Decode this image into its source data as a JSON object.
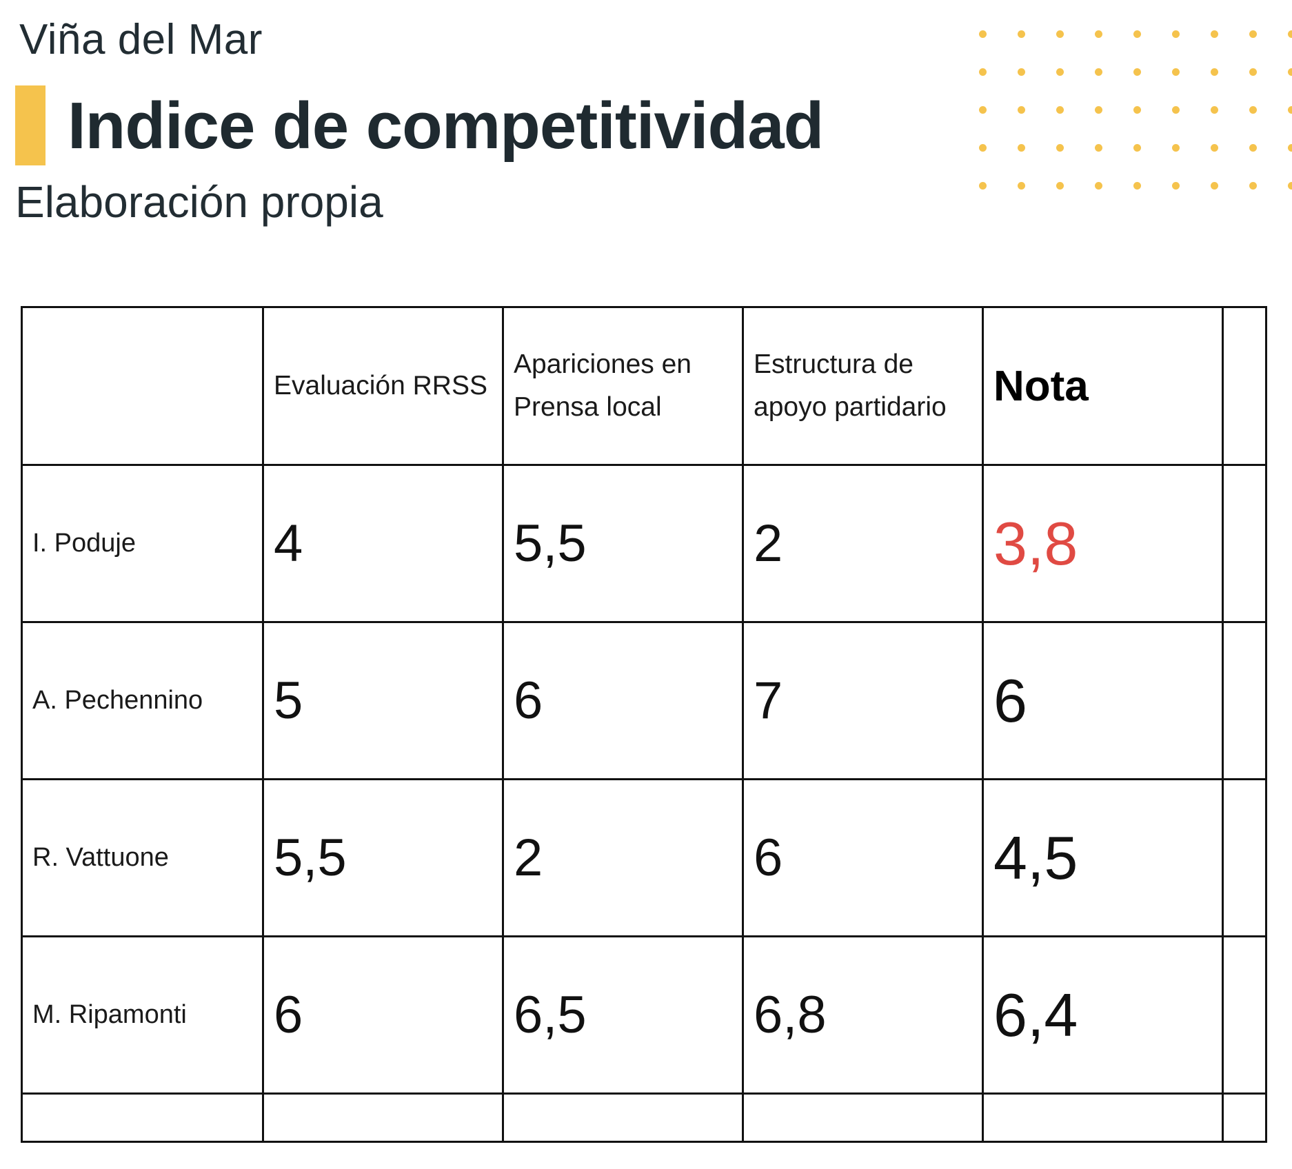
{
  "header": {
    "region": "Viña del Mar",
    "title": "Indice de competitividad",
    "subtitle": "Elaboración propia"
  },
  "colors": {
    "accent": "#f5c34d",
    "text_dark": "#1f2a30",
    "highlight_red": "#e04a43"
  },
  "table": {
    "columns": [
      "",
      "Evaluación RRSS",
      "Apariciones en Prensa local",
      "Estructura de apoyo partidario",
      "Nota",
      ""
    ],
    "rows": [
      {
        "name": "I. Poduje",
        "rrss": "4",
        "prensa": "5,5",
        "estructura": "2",
        "nota": "3,8"
      },
      {
        "name": "A. Pechennino",
        "rrss": "5",
        "prensa": "6",
        "estructura": "7",
        "nota": "6"
      },
      {
        "name": "R. Vattuone",
        "rrss": "5,5",
        "prensa": "2",
        "estructura": "6",
        "nota": "4,5"
      },
      {
        "name": "M. Ripamonti",
        "rrss": "6",
        "prensa": "6,5",
        "estructura": "6,8",
        "nota": "6,4"
      }
    ]
  }
}
